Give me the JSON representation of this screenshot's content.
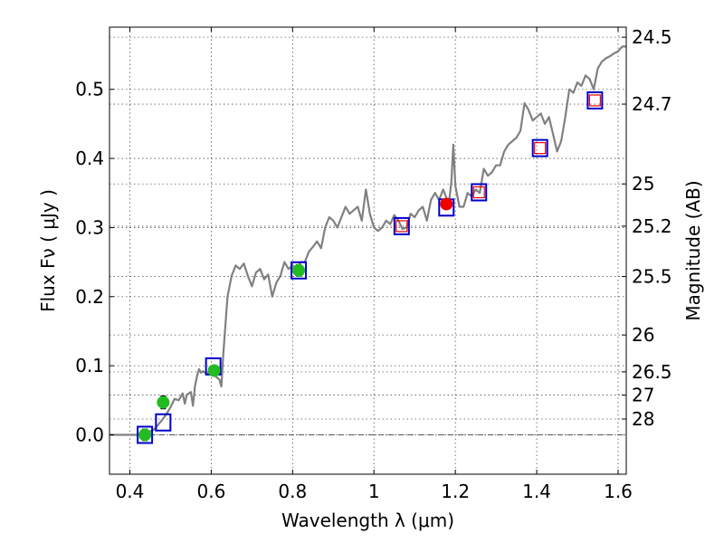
{
  "chart_data": {
    "type": "scatter",
    "xlabel": "Wavelength  λ (μm)",
    "ylabel": "Flux  Fν  ( μJy )",
    "y2label": "Magnitude (AB)",
    "xlim": [
      0.35,
      1.62
    ],
    "ylim": [
      -0.057,
      0.59
    ],
    "x_ticks": [
      0.4,
      0.6,
      0.8,
      1.0,
      1.2,
      1.4,
      1.6
    ],
    "x_tick_labels": [
      "0.4",
      "0.6",
      "0.8",
      "1",
      "1.2",
      "1.4",
      "1.6"
    ],
    "y_ticks": [
      0.0,
      0.1,
      0.2,
      0.3,
      0.4,
      0.5
    ],
    "y_tick_labels": [
      "0.0",
      "0.1",
      "0.2",
      "0.3",
      "0.4",
      "0.5"
    ],
    "y2_ticks": [
      {
        "label": "24.5",
        "flux": 0.5754
      },
      {
        "label": "24.7",
        "flux": 0.4786
      },
      {
        "label": "25",
        "flux": 0.3631
      },
      {
        "label": "25.2",
        "flux": 0.302
      },
      {
        "label": "25.5",
        "flux": 0.2291
      },
      {
        "label": "26",
        "flux": 0.1445
      },
      {
        "label": "26.5",
        "flux": 0.0912
      },
      {
        "label": "27",
        "flux": 0.0575
      },
      {
        "label": "28",
        "flux": 0.0229
      }
    ],
    "grid": true,
    "colors": {
      "model": "#808080",
      "model_box": "#0000cc",
      "green": "#22bb22",
      "red": "#ee0000",
      "zero_line": "#555555"
    },
    "series": [
      {
        "type": "line",
        "points": [
          [
            0.35,
            0.0
          ],
          [
            0.42,
            0.0
          ],
          [
            0.44,
            0.002
          ],
          [
            0.46,
            0.008
          ],
          [
            0.47,
            0.015
          ],
          [
            0.48,
            0.022
          ],
          [
            0.49,
            0.03
          ],
          [
            0.5,
            0.04
          ],
          [
            0.51,
            0.052
          ],
          [
            0.52,
            0.05
          ],
          [
            0.53,
            0.06
          ],
          [
            0.535,
            0.045
          ],
          [
            0.54,
            0.058
          ],
          [
            0.55,
            0.062
          ],
          [
            0.555,
            0.042
          ],
          [
            0.56,
            0.07
          ],
          [
            0.565,
            0.085
          ],
          [
            0.57,
            0.095
          ],
          [
            0.575,
            0.09
          ],
          [
            0.58,
            0.092
          ],
          [
            0.59,
            0.088
          ],
          [
            0.6,
            0.095
          ],
          [
            0.61,
            0.085
          ],
          [
            0.62,
            0.08
          ],
          [
            0.625,
            0.07
          ],
          [
            0.63,
            0.12
          ],
          [
            0.64,
            0.2
          ],
          [
            0.65,
            0.23
          ],
          [
            0.66,
            0.245
          ],
          [
            0.67,
            0.24
          ],
          [
            0.68,
            0.248
          ],
          [
            0.69,
            0.23
          ],
          [
            0.7,
            0.215
          ],
          [
            0.71,
            0.235
          ],
          [
            0.72,
            0.24
          ],
          [
            0.73,
            0.225
          ],
          [
            0.74,
            0.232
          ],
          [
            0.75,
            0.2
          ],
          [
            0.76,
            0.22
          ],
          [
            0.77,
            0.23
          ],
          [
            0.78,
            0.25
          ],
          [
            0.79,
            0.24
          ],
          [
            0.8,
            0.245
          ],
          [
            0.81,
            0.24
          ],
          [
            0.82,
            0.25
          ],
          [
            0.83,
            0.25
          ],
          [
            0.84,
            0.265
          ],
          [
            0.85,
            0.272
          ],
          [
            0.86,
            0.28
          ],
          [
            0.87,
            0.27
          ],
          [
            0.88,
            0.3
          ],
          [
            0.89,
            0.315
          ],
          [
            0.9,
            0.31
          ],
          [
            0.91,
            0.3
          ],
          [
            0.92,
            0.315
          ],
          [
            0.93,
            0.33
          ],
          [
            0.94,
            0.32
          ],
          [
            0.95,
            0.325
          ],
          [
            0.96,
            0.33
          ],
          [
            0.97,
            0.31
          ],
          [
            0.98,
            0.355
          ],
          [
            0.99,
            0.32
          ],
          [
            1.0,
            0.3
          ],
          [
            1.01,
            0.295
          ],
          [
            1.02,
            0.3
          ],
          [
            1.03,
            0.31
          ],
          [
            1.04,
            0.305
          ],
          [
            1.05,
            0.318
          ],
          [
            1.06,
            0.31
          ],
          [
            1.07,
            0.298
          ],
          [
            1.08,
            0.3
          ],
          [
            1.09,
            0.32
          ],
          [
            1.1,
            0.315
          ],
          [
            1.11,
            0.325
          ],
          [
            1.12,
            0.33
          ],
          [
            1.13,
            0.31
          ],
          [
            1.14,
            0.34
          ],
          [
            1.15,
            0.35
          ],
          [
            1.16,
            0.34
          ],
          [
            1.17,
            0.355
          ],
          [
            1.18,
            0.34
          ],
          [
            1.185,
            0.34
          ],
          [
            1.19,
            0.365
          ],
          [
            1.195,
            0.42
          ],
          [
            1.2,
            0.36
          ],
          [
            1.21,
            0.33
          ],
          [
            1.22,
            0.33
          ],
          [
            1.23,
            0.35
          ],
          [
            1.24,
            0.345
          ],
          [
            1.25,
            0.355
          ],
          [
            1.26,
            0.35
          ],
          [
            1.27,
            0.385
          ],
          [
            1.28,
            0.375
          ],
          [
            1.29,
            0.38
          ],
          [
            1.3,
            0.39
          ],
          [
            1.31,
            0.39
          ],
          [
            1.32,
            0.41
          ],
          [
            1.33,
            0.42
          ],
          [
            1.34,
            0.425
          ],
          [
            1.35,
            0.43
          ],
          [
            1.36,
            0.44
          ],
          [
            1.37,
            0.48
          ],
          [
            1.38,
            0.47
          ],
          [
            1.39,
            0.455
          ],
          [
            1.4,
            0.46
          ],
          [
            1.41,
            0.465
          ],
          [
            1.42,
            0.45
          ],
          [
            1.43,
            0.46
          ],
          [
            1.44,
            0.435
          ],
          [
            1.45,
            0.41
          ],
          [
            1.46,
            0.425
          ],
          [
            1.47,
            0.46
          ],
          [
            1.48,
            0.5
          ],
          [
            1.49,
            0.495
          ],
          [
            1.5,
            0.51
          ],
          [
            1.51,
            0.505
          ],
          [
            1.52,
            0.52
          ],
          [
            1.53,
            0.515
          ],
          [
            1.54,
            0.5
          ],
          [
            1.55,
            0.53
          ],
          [
            1.56,
            0.54
          ],
          [
            1.57,
            0.545
          ],
          [
            1.58,
            0.548
          ],
          [
            1.59,
            0.552
          ],
          [
            1.6,
            0.555
          ],
          [
            1.61,
            0.562
          ],
          [
            1.62,
            0.562
          ]
        ]
      },
      {
        "type": "box_markers",
        "points": [
          [
            0.437,
            0.0
          ],
          [
            0.482,
            0.018
          ],
          [
            0.605,
            0.099
          ],
          [
            0.815,
            0.238
          ],
          [
            1.068,
            0.302
          ],
          [
            1.178,
            0.329
          ],
          [
            1.258,
            0.351
          ],
          [
            1.408,
            0.415
          ],
          [
            1.543,
            0.484
          ]
        ]
      },
      {
        "type": "error_points",
        "color": "green",
        "points": [
          {
            "x": 0.437,
            "y": 0.0,
            "err": 0.008
          },
          {
            "x": 0.482,
            "y": 0.047,
            "err": 0.009
          },
          {
            "x": 0.607,
            "y": 0.093,
            "err": 0.006
          },
          {
            "x": 0.815,
            "y": 0.238,
            "err": 0.008
          }
        ]
      },
      {
        "type": "error_points",
        "color": "red",
        "points": [
          {
            "x": 1.178,
            "y": 0.334,
            "err": 0.007
          }
        ]
      },
      {
        "type": "open_squares",
        "color": "red",
        "points": [
          [
            1.068,
            0.302
          ],
          [
            1.258,
            0.351
          ],
          [
            1.408,
            0.415
          ],
          [
            1.543,
            0.484
          ]
        ]
      }
    ]
  }
}
